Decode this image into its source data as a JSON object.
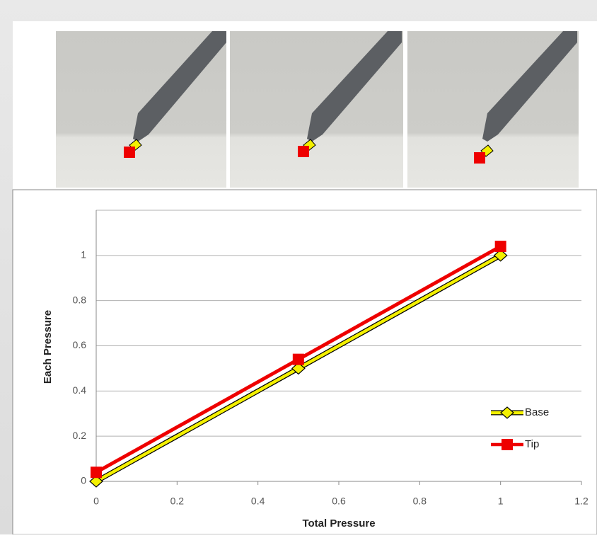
{
  "chart_data": {
    "type": "line",
    "x_label": "Total Pressure",
    "y_label": "Each Pressure",
    "x": [
      0,
      0.5,
      1
    ],
    "series": [
      {
        "name": "Base",
        "color": "#f3f000",
        "marker": "diamond",
        "values": [
          0,
          0.5,
          1
        ]
      },
      {
        "name": "Tip",
        "color": "#ee0000",
        "marker": "square",
        "values": [
          0.04,
          0.54,
          1.04
        ]
      }
    ],
    "xlim": [
      0,
      1.2
    ],
    "xticks": [
      0,
      0.2,
      0.4,
      0.6,
      0.8,
      1,
      1.2
    ],
    "ylim": [
      0,
      1.2
    ],
    "yticks": [
      0,
      0.2,
      0.4,
      0.6,
      0.8,
      1
    ],
    "grid": true,
    "legend": "lower right"
  }
}
